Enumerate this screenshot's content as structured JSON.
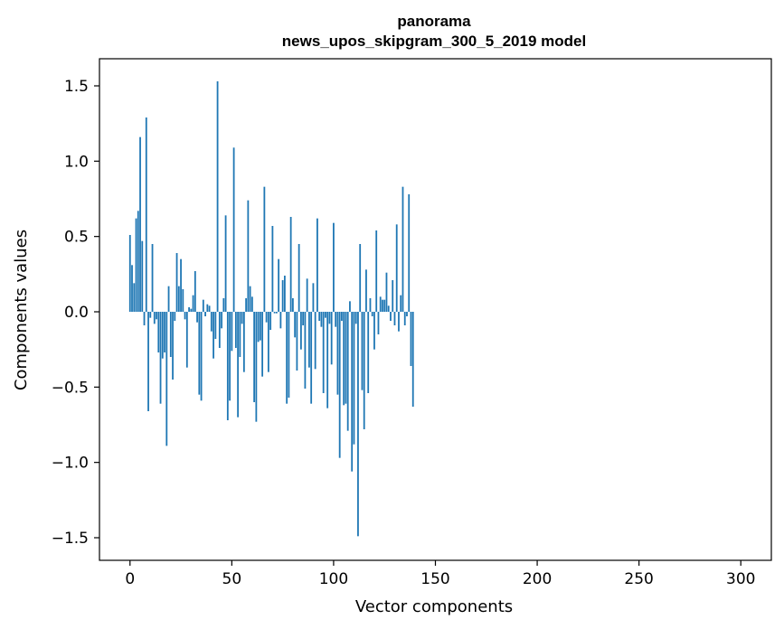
{
  "chart_data": {
    "type": "bar",
    "title_line1": "panorama",
    "title_line2": "news_upos_skipgram_300_5_2019 model",
    "xlabel": "Vector components",
    "ylabel": "Components values",
    "xlim": [
      -15,
      315
    ],
    "ylim": [
      -1.65,
      1.68
    ],
    "xticks": [
      0,
      50,
      100,
      150,
      200,
      250,
      300
    ],
    "yticks": [
      -1.5,
      -1.0,
      -0.5,
      0.0,
      0.5,
      1.0,
      1.5
    ],
    "ytick_labels": [
      "−1.5",
      "−1.0",
      "−0.5",
      "0.0",
      "0.5",
      "1.0",
      "1.5"
    ],
    "bar_color": "#1f77b4",
    "grid": false,
    "values": [
      0.51,
      0.31,
      0.19,
      0.62,
      0.67,
      1.16,
      0.47,
      -0.09,
      1.29,
      -0.66,
      -0.04,
      0.45,
      -0.08,
      -0.05,
      -0.27,
      -0.61,
      -0.31,
      -0.27,
      -0.89,
      0.17,
      -0.3,
      -0.45,
      -0.06,
      0.39,
      0.17,
      0.35,
      0.15,
      -0.05,
      -0.37,
      0.03,
      0.02,
      0.11,
      0.27,
      -0.07,
      -0.55,
      -0.59,
      0.08,
      -0.03,
      0.05,
      0.04,
      -0.13,
      -0.31,
      -0.18,
      1.53,
      -0.24,
      -0.11,
      0.09,
      0.64,
      -0.72,
      -0.59,
      -0.26,
      1.09,
      -0.24,
      -0.7,
      -0.3,
      -0.08,
      -0.4,
      0.09,
      0.74,
      0.17,
      0.1,
      -0.6,
      -0.73,
      -0.2,
      -0.19,
      -0.43,
      0.83,
      -0.07,
      -0.4,
      -0.12,
      0.57,
      -0.01,
      -0.01,
      0.35,
      -0.11,
      0.21,
      0.24,
      -0.61,
      -0.57,
      0.63,
      0.09,
      -0.17,
      -0.39,
      0.45,
      -0.25,
      -0.09,
      -0.51,
      0.22,
      -0.37,
      -0.61,
      0.19,
      -0.38,
      0.62,
      -0.06,
      -0.1,
      -0.54,
      -0.04,
      -0.64,
      -0.08,
      -0.35,
      0.59,
      -0.1,
      -0.55,
      -0.97,
      -0.06,
      -0.62,
      -0.61,
      -0.79,
      0.07,
      -1.06,
      -0.88,
      -0.08,
      -1.49,
      0.45,
      -0.52,
      -0.78,
      0.28,
      -0.54,
      0.09,
      -0.03,
      -0.25,
      0.54,
      -0.15,
      0.1,
      0.08,
      0.08,
      0.26,
      0.04,
      -0.06,
      0.21,
      -0.09,
      0.58,
      -0.13,
      0.11,
      0.83,
      -0.09,
      -0.03,
      0.78,
      -0.36,
      -0.63
    ]
  }
}
